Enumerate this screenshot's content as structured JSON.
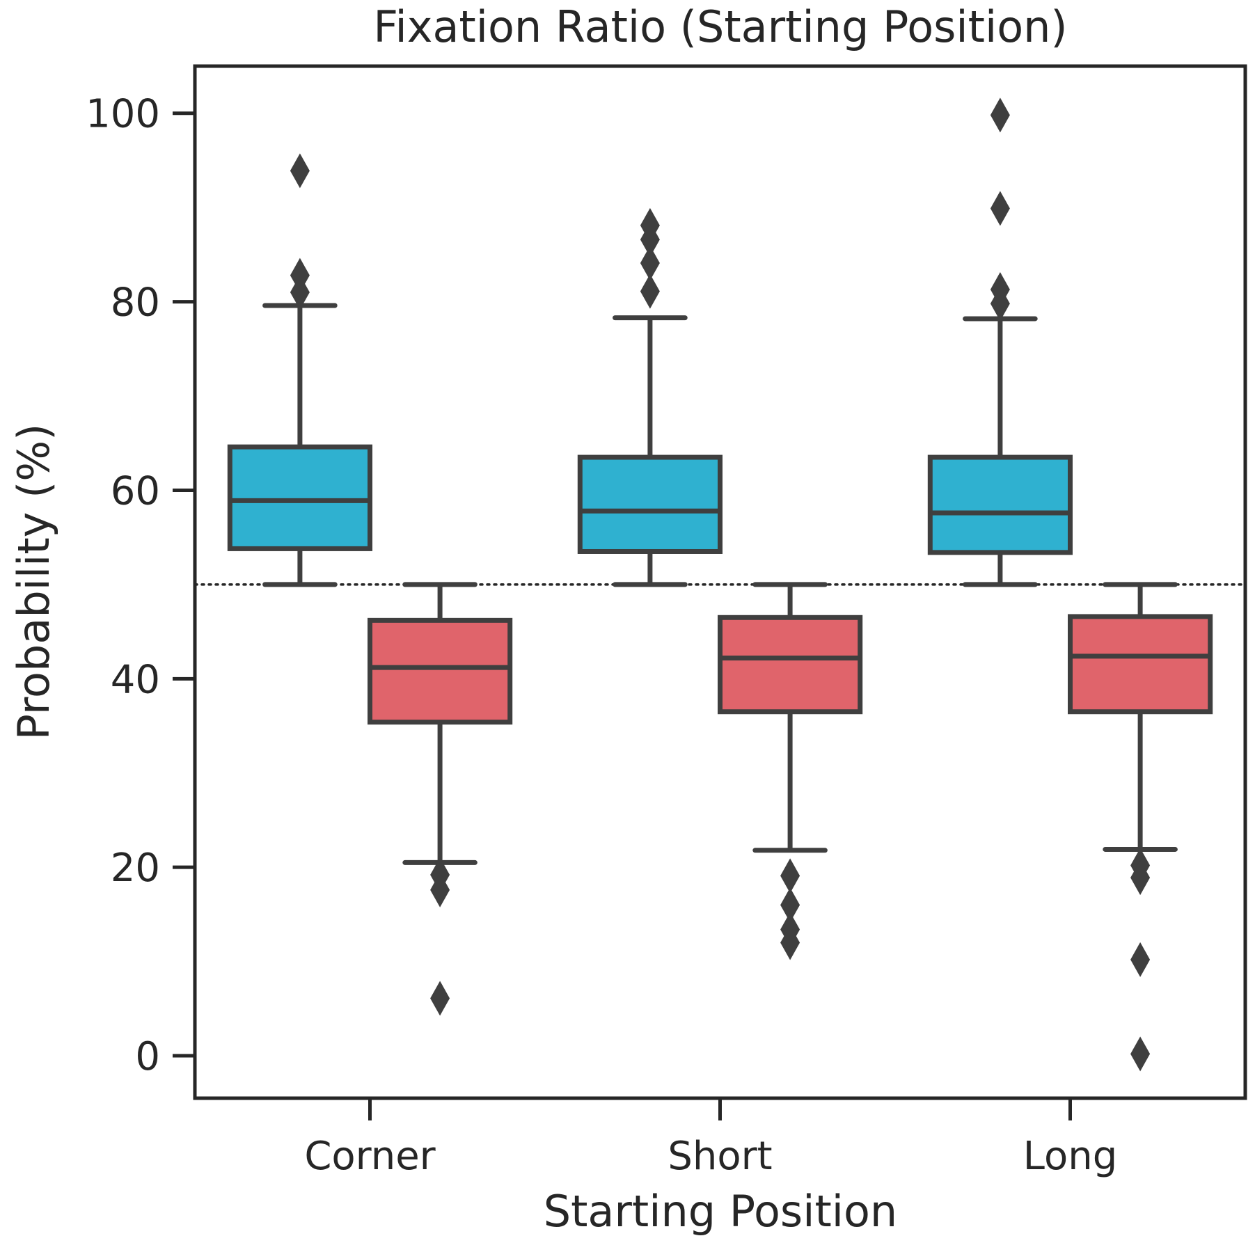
{
  "chart_data": {
    "type": "box",
    "title": "Fixation Ratio (Starting Position)",
    "xlabel": "Starting Position",
    "ylabel": "Probability (%)",
    "categories": [
      "Corner",
      "Short",
      "Long"
    ],
    "ylim": [
      -4.5,
      105
    ],
    "yticks": [
      0,
      20,
      40,
      60,
      80,
      100
    ],
    "reference_line": {
      "y": 50,
      "style": "dotted"
    },
    "grid": false,
    "legend": "none",
    "series": [
      {
        "color": "#2fb1d0",
        "boxes": [
          {
            "category": "Corner",
            "whisker_low": 50,
            "q1": 53.8,
            "median": 58.9,
            "q3": 64.6,
            "whisker_high": 79.6,
            "outliers": [
              81.0,
              82.8,
              93.9
            ]
          },
          {
            "category": "Short",
            "whisker_low": 50,
            "q1": 53.5,
            "median": 57.8,
            "q3": 63.5,
            "whisker_high": 78.3,
            "outliers": [
              81.1,
              84.1,
              86.6,
              88.1
            ]
          },
          {
            "category": "Long",
            "whisker_low": 50,
            "q1": 53.4,
            "median": 57.6,
            "q3": 63.5,
            "whisker_high": 78.2,
            "outliers": [
              79.8,
              81.3,
              89.9,
              99.8
            ]
          }
        ]
      },
      {
        "color": "#e0646b",
        "boxes": [
          {
            "category": "Corner",
            "whisker_low": 20.5,
            "q1": 35.4,
            "median": 41.2,
            "q3": 46.2,
            "whisker_high": 50,
            "outliers": [
              19.2,
              17.6,
              6.1
            ]
          },
          {
            "category": "Short",
            "whisker_low": 21.8,
            "q1": 36.5,
            "median": 42.2,
            "q3": 46.5,
            "whisker_high": 50,
            "outliers": [
              19.1,
              16.0,
              13.4,
              12.0
            ]
          },
          {
            "category": "Long",
            "whisker_low": 21.9,
            "q1": 36.5,
            "median": 42.4,
            "q3": 46.6,
            "whisker_high": 50,
            "outliers": [
              20.2,
              18.9,
              10.2,
              0.2
            ]
          }
        ]
      }
    ]
  }
}
